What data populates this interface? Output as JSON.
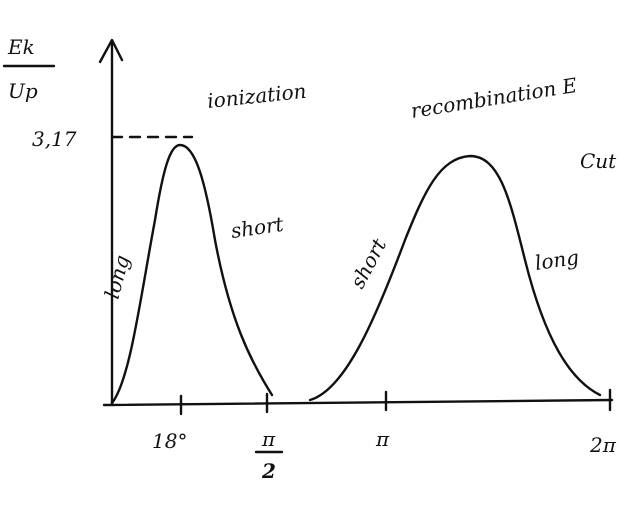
{
  "y_axis": {
    "label_top": "Ek",
    "label_bottom": "Up",
    "max_label": "3,17"
  },
  "annotations": {
    "ionization": "ionization",
    "recombination": "recombination E",
    "cut": "Cut"
  },
  "curve_labels": {
    "left_rising": "long",
    "left_falling": "short",
    "right_rising": "short",
    "right_falling": "long"
  },
  "x_ticks": {
    "first": "18°",
    "half_pi_top": "π",
    "half_pi_bottom": "2",
    "pi": "π",
    "two_pi": "2π"
  }
}
